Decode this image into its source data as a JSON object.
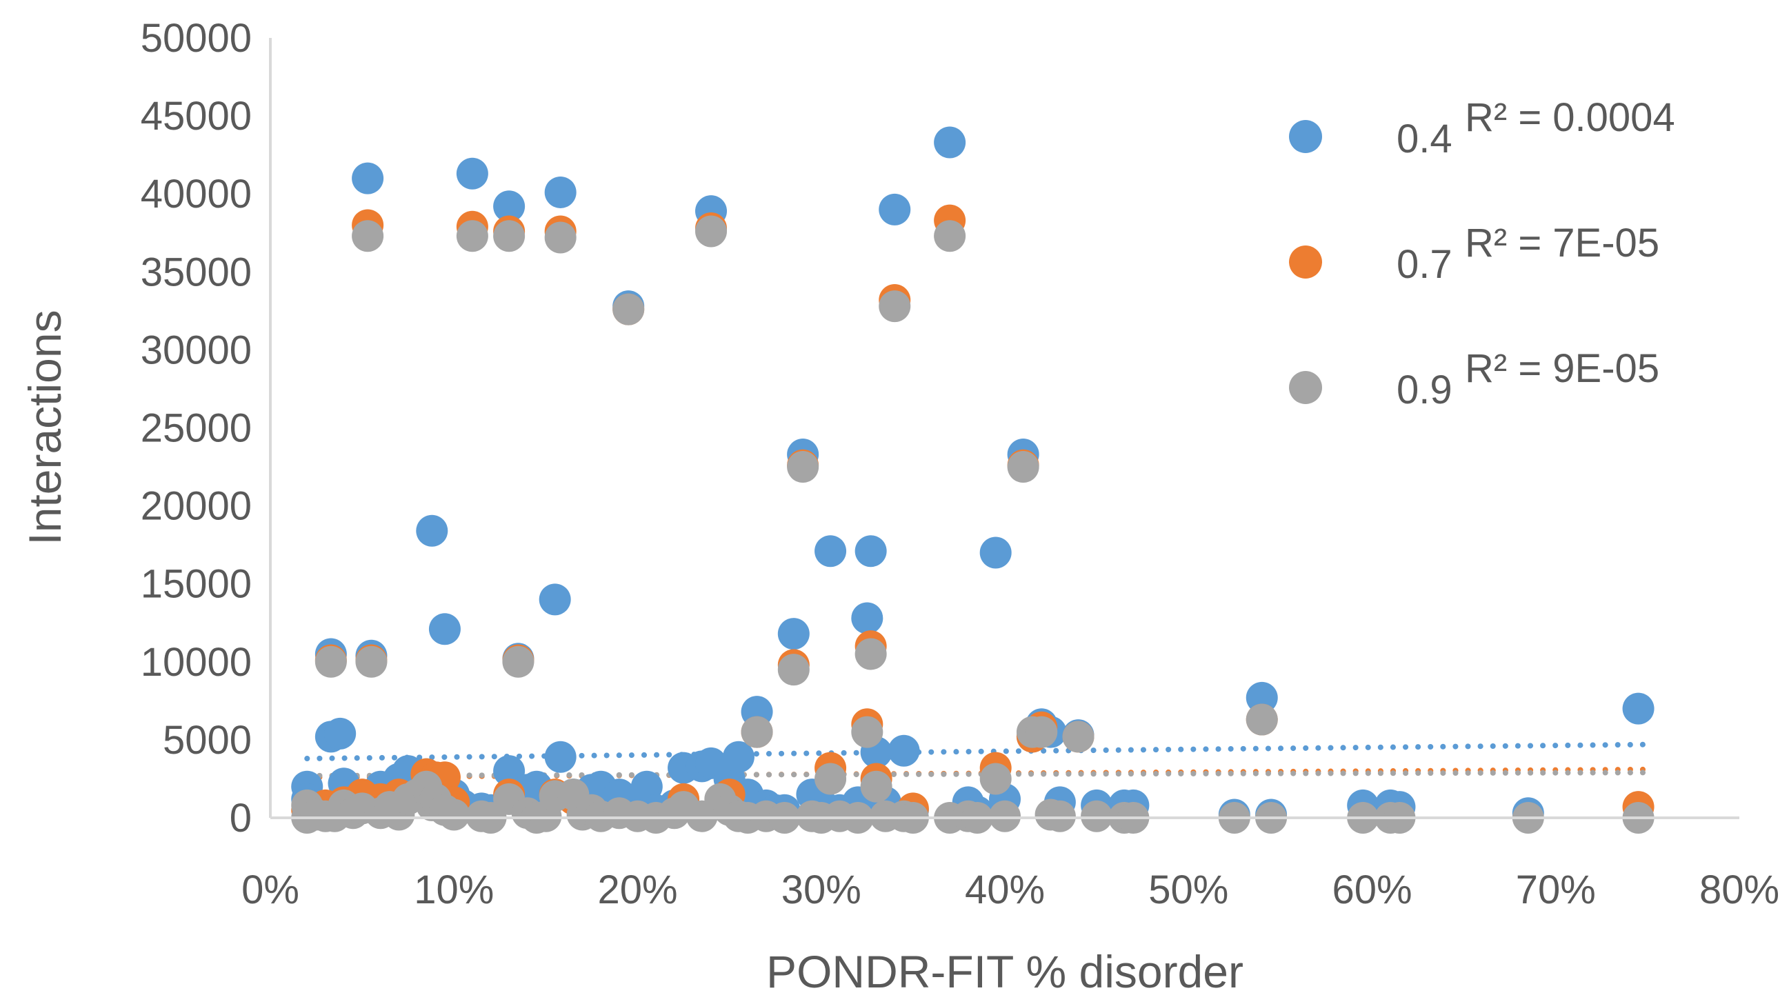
{
  "chart_data": {
    "type": "scatter",
    "title": "",
    "xlabel": "PONDR-FIT % disorder",
    "ylabel": "Interactions",
    "xlim": [
      0,
      0.8
    ],
    "ylim": [
      0,
      50000
    ],
    "x_ticks": [
      0,
      0.1,
      0.2,
      0.3,
      0.4,
      0.5,
      0.6,
      0.7,
      0.8
    ],
    "x_tick_labels": [
      "0%",
      "10%",
      "20%",
      "30%",
      "40%",
      "50%",
      "60%",
      "70%",
      "80%"
    ],
    "y_ticks": [
      0,
      5000,
      10000,
      15000,
      20000,
      25000,
      30000,
      35000,
      40000,
      45000,
      50000
    ],
    "y_tick_labels": [
      "0",
      "5000",
      "10000",
      "15000",
      "20000",
      "25000",
      "30000",
      "35000",
      "40000",
      "45000",
      "50000"
    ],
    "grid": false,
    "legend_position": "right",
    "series": [
      {
        "name": "0.4",
        "r2_label": "R² = 0.0004",
        "color": "#5b9bd5",
        "trendline": [
          [
            0.02,
            3800
          ],
          [
            0.75,
            4700
          ]
        ],
        "points": [
          [
            0.02,
            2000
          ],
          [
            0.02,
            1200
          ],
          [
            0.025,
            800
          ],
          [
            0.03,
            500
          ],
          [
            0.033,
            10500
          ],
          [
            0.033,
            5200
          ],
          [
            0.038,
            5400
          ],
          [
            0.04,
            2200
          ],
          [
            0.045,
            1500
          ],
          [
            0.05,
            900
          ],
          [
            0.053,
            41000
          ],
          [
            0.055,
            10400
          ],
          [
            0.06,
            2000
          ],
          [
            0.065,
            1200
          ],
          [
            0.07,
            2500
          ],
          [
            0.075,
            3000
          ],
          [
            0.08,
            1800
          ],
          [
            0.085,
            2800
          ],
          [
            0.088,
            18400
          ],
          [
            0.09,
            2200
          ],
          [
            0.095,
            12100
          ],
          [
            0.1,
            1500
          ],
          [
            0.105,
            800
          ],
          [
            0.11,
            41300
          ],
          [
            0.115,
            600
          ],
          [
            0.12,
            500
          ],
          [
            0.13,
            39200
          ],
          [
            0.13,
            3000
          ],
          [
            0.135,
            10200
          ],
          [
            0.14,
            1800
          ],
          [
            0.145,
            2000
          ],
          [
            0.15,
            1000
          ],
          [
            0.155,
            14000
          ],
          [
            0.158,
            40100
          ],
          [
            0.158,
            3900
          ],
          [
            0.165,
            1500
          ],
          [
            0.17,
            1000
          ],
          [
            0.175,
            1800
          ],
          [
            0.18,
            2000
          ],
          [
            0.19,
            1500
          ],
          [
            0.195,
            32800
          ],
          [
            0.2,
            1000
          ],
          [
            0.205,
            2000
          ],
          [
            0.21,
            500
          ],
          [
            0.22,
            800
          ],
          [
            0.225,
            3200
          ],
          [
            0.235,
            3300
          ],
          [
            0.24,
            38900
          ],
          [
            0.24,
            3500
          ],
          [
            0.25,
            2500
          ],
          [
            0.255,
            3900
          ],
          [
            0.26,
            1500
          ],
          [
            0.265,
            6800
          ],
          [
            0.27,
            800
          ],
          [
            0.275,
            500
          ],
          [
            0.28,
            500
          ],
          [
            0.285,
            11800
          ],
          [
            0.29,
            23300
          ],
          [
            0.295,
            1500
          ],
          [
            0.3,
            900
          ],
          [
            0.305,
            17100
          ],
          [
            0.31,
            500
          ],
          [
            0.32,
            1000
          ],
          [
            0.325,
            12800
          ],
          [
            0.327,
            17100
          ],
          [
            0.33,
            4200
          ],
          [
            0.335,
            1000
          ],
          [
            0.34,
            39000
          ],
          [
            0.345,
            4300
          ],
          [
            0.35,
            500
          ],
          [
            0.37,
            43300
          ],
          [
            0.38,
            1000
          ],
          [
            0.385,
            400
          ],
          [
            0.395,
            17000
          ],
          [
            0.4,
            1200
          ],
          [
            0.41,
            23300
          ],
          [
            0.415,
            5200
          ],
          [
            0.42,
            6000
          ],
          [
            0.425,
            5500
          ],
          [
            0.43,
            1000
          ],
          [
            0.44,
            5300
          ],
          [
            0.45,
            800
          ],
          [
            0.465,
            800
          ],
          [
            0.47,
            800
          ],
          [
            0.525,
            200
          ],
          [
            0.54,
            7700
          ],
          [
            0.545,
            200
          ],
          [
            0.595,
            800
          ],
          [
            0.61,
            800
          ],
          [
            0.615,
            700
          ],
          [
            0.685,
            300
          ],
          [
            0.745,
            7000
          ]
        ]
      },
      {
        "name": "0.7",
        "r2_label": "R² = 7E-05",
        "color": "#ed7d31",
        "trendline": [
          [
            0.02,
            2600
          ],
          [
            0.75,
            3100
          ]
        ],
        "points": [
          [
            0.02,
            500
          ],
          [
            0.03,
            800
          ],
          [
            0.033,
            10100
          ],
          [
            0.04,
            1000
          ],
          [
            0.05,
            1500
          ],
          [
            0.053,
            38000
          ],
          [
            0.055,
            10100
          ],
          [
            0.06,
            1200
          ],
          [
            0.07,
            1500
          ],
          [
            0.085,
            2800
          ],
          [
            0.09,
            2600
          ],
          [
            0.095,
            2600
          ],
          [
            0.1,
            1000
          ],
          [
            0.11,
            37900
          ],
          [
            0.13,
            37600
          ],
          [
            0.13,
            1500
          ],
          [
            0.135,
            10100
          ],
          [
            0.155,
            1500
          ],
          [
            0.158,
            37600
          ],
          [
            0.165,
            1200
          ],
          [
            0.195,
            32600
          ],
          [
            0.225,
            1200
          ],
          [
            0.24,
            37800
          ],
          [
            0.25,
            1500
          ],
          [
            0.265,
            5500
          ],
          [
            0.285,
            9800
          ],
          [
            0.29,
            22600
          ],
          [
            0.305,
            3200
          ],
          [
            0.325,
            6000
          ],
          [
            0.327,
            11000
          ],
          [
            0.33,
            2500
          ],
          [
            0.34,
            33200
          ],
          [
            0.35,
            600
          ],
          [
            0.37,
            38300
          ],
          [
            0.395,
            3200
          ],
          [
            0.41,
            22600
          ],
          [
            0.415,
            5200
          ],
          [
            0.42,
            5800
          ],
          [
            0.44,
            5200
          ],
          [
            0.54,
            6300
          ],
          [
            0.745,
            700
          ]
        ]
      },
      {
        "name": "0.9",
        "r2_label": "R² = 9E-05",
        "color": "#a5a5a5",
        "trendline": [
          [
            0.02,
            2700
          ],
          [
            0.75,
            2900
          ]
        ],
        "points": [
          [
            0.02,
            800
          ],
          [
            0.02,
            0
          ],
          [
            0.025,
            200
          ],
          [
            0.03,
            100
          ],
          [
            0.033,
            10000
          ],
          [
            0.035,
            100
          ],
          [
            0.04,
            800
          ],
          [
            0.045,
            300
          ],
          [
            0.05,
            600
          ],
          [
            0.053,
            37300
          ],
          [
            0.055,
            10000
          ],
          [
            0.06,
            300
          ],
          [
            0.065,
            700
          ],
          [
            0.07,
            200
          ],
          [
            0.075,
            1200
          ],
          [
            0.08,
            1500
          ],
          [
            0.085,
            2000
          ],
          [
            0.088,
            800
          ],
          [
            0.09,
            1200
          ],
          [
            0.095,
            500
          ],
          [
            0.1,
            200
          ],
          [
            0.11,
            37300
          ],
          [
            0.115,
            100
          ],
          [
            0.12,
            0
          ],
          [
            0.13,
            37300
          ],
          [
            0.13,
            1200
          ],
          [
            0.135,
            10000
          ],
          [
            0.14,
            300
          ],
          [
            0.145,
            0
          ],
          [
            0.15,
            100
          ],
          [
            0.155,
            1400
          ],
          [
            0.158,
            37200
          ],
          [
            0.165,
            1500
          ],
          [
            0.17,
            200
          ],
          [
            0.175,
            500
          ],
          [
            0.18,
            100
          ],
          [
            0.19,
            300
          ],
          [
            0.195,
            32600
          ],
          [
            0.2,
            100
          ],
          [
            0.21,
            0
          ],
          [
            0.22,
            300
          ],
          [
            0.225,
            700
          ],
          [
            0.235,
            100
          ],
          [
            0.24,
            37600
          ],
          [
            0.245,
            1200
          ],
          [
            0.25,
            500
          ],
          [
            0.255,
            100
          ],
          [
            0.26,
            0
          ],
          [
            0.265,
            5500
          ],
          [
            0.27,
            100
          ],
          [
            0.28,
            0
          ],
          [
            0.285,
            9500
          ],
          [
            0.29,
            22500
          ],
          [
            0.295,
            100
          ],
          [
            0.3,
            0
          ],
          [
            0.305,
            2500
          ],
          [
            0.31,
            100
          ],
          [
            0.32,
            0
          ],
          [
            0.325,
            5500
          ],
          [
            0.327,
            10500
          ],
          [
            0.33,
            2000
          ],
          [
            0.335,
            100
          ],
          [
            0.34,
            32800
          ],
          [
            0.345,
            100
          ],
          [
            0.35,
            0
          ],
          [
            0.37,
            37300
          ],
          [
            0.37,
            0
          ],
          [
            0.38,
            100
          ],
          [
            0.385,
            0
          ],
          [
            0.395,
            2500
          ],
          [
            0.4,
            100
          ],
          [
            0.41,
            22500
          ],
          [
            0.415,
            5500
          ],
          [
            0.42,
            5500
          ],
          [
            0.425,
            200
          ],
          [
            0.43,
            100
          ],
          [
            0.44,
            5200
          ],
          [
            0.45,
            100
          ],
          [
            0.465,
            0
          ],
          [
            0.47,
            0
          ],
          [
            0.525,
            0
          ],
          [
            0.54,
            6300
          ],
          [
            0.545,
            0
          ],
          [
            0.595,
            0
          ],
          [
            0.61,
            0
          ],
          [
            0.615,
            0
          ],
          [
            0.685,
            0
          ],
          [
            0.745,
            0
          ]
        ]
      }
    ]
  }
}
